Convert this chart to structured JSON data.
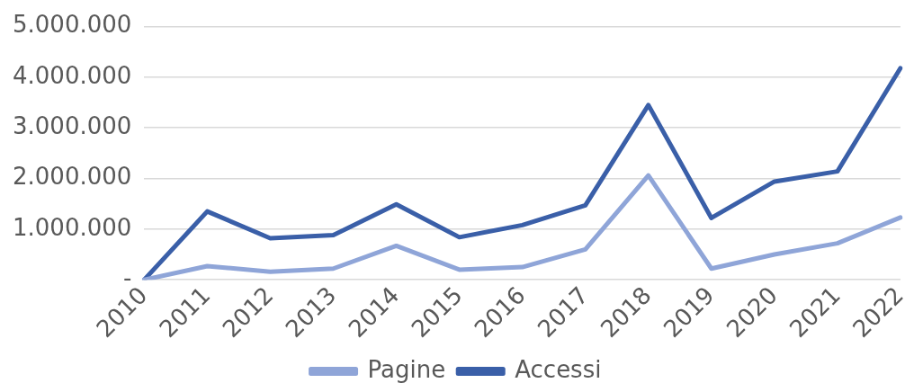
{
  "chart_data": {
    "type": "line",
    "categories": [
      "2010",
      "2011",
      "2012",
      "2013",
      "2014",
      "2015",
      "2016",
      "2017",
      "2018",
      "2019",
      "2020",
      "2021",
      "2022"
    ],
    "series": [
      {
        "name": "Pagine",
        "color": "#8fa5d8",
        "values": [
          0,
          270000,
          160000,
          220000,
          670000,
          200000,
          250000,
          600000,
          2060000,
          220000,
          500000,
          720000,
          1230000
        ]
      },
      {
        "name": "Accessi",
        "color": "#3a5fa8",
        "values": [
          0,
          1350000,
          820000,
          880000,
          1490000,
          840000,
          1080000,
          1470000,
          3450000,
          1220000,
          1940000,
          2140000,
          4180000
        ]
      }
    ],
    "ylim": [
      0,
      5000000
    ],
    "yticks": [
      {
        "value": 0,
        "label": "-"
      },
      {
        "value": 1000000,
        "label": "1.000.000"
      },
      {
        "value": 2000000,
        "label": "2.000.000"
      },
      {
        "value": 3000000,
        "label": "3.000.000"
      },
      {
        "value": 4000000,
        "label": "4.000.000"
      },
      {
        "value": 5000000,
        "label": "5.000.000"
      }
    ],
    "grid": "y",
    "legend": "bottom",
    "marker": "none",
    "line_style": "solid"
  }
}
